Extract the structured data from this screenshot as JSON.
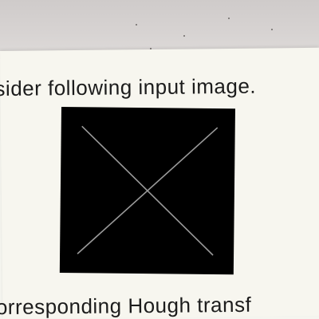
{
  "document": {
    "line_1": "nsider following input image.",
    "line_2": "corresponding Hough transf"
  },
  "figure": {
    "background_color": "#000000",
    "stroke_color": "#9a9a9a",
    "content": "two crossing diagonal lines"
  }
}
